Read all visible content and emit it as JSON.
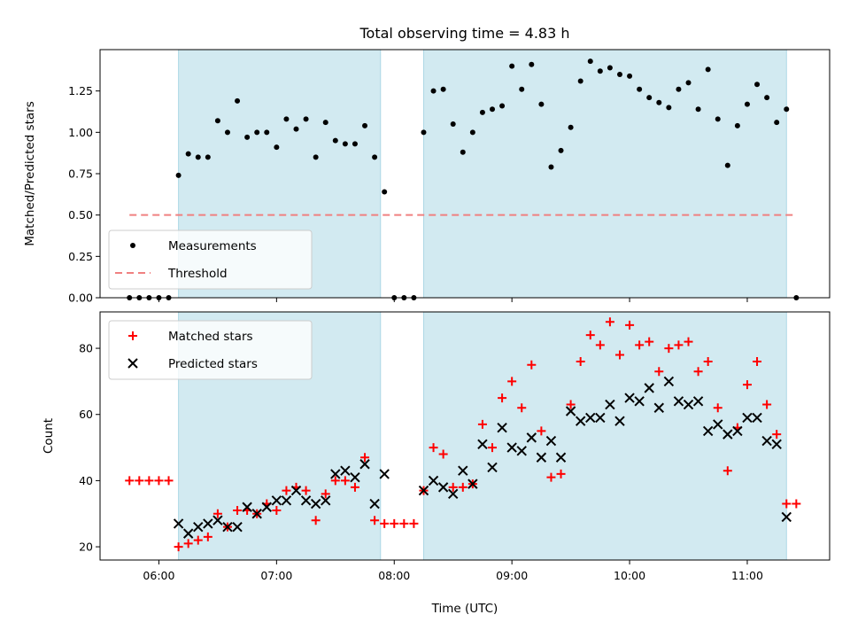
{
  "title": "Total observing time = 4.83 h",
  "colors": {
    "band": "#add8e6",
    "measurement": "#000000",
    "threshold": "#f08080",
    "matched": "#ff0000",
    "predicted": "#000000"
  },
  "chart_data": [
    {
      "type": "scatter",
      "panel": "top",
      "xlabel": "",
      "ylabel": "Matched/Predicted stars",
      "xlim": [
        "05:30",
        "11:42"
      ],
      "ylim": [
        0,
        1.5
      ],
      "yticks": [
        0.0,
        0.25,
        0.5,
        0.75,
        1.0,
        1.25
      ],
      "ytick_labels": [
        "0.00",
        "0.25",
        "0.50",
        "0.75",
        "1.00",
        "1.25"
      ],
      "shaded_intervals": [
        [
          "06:10",
          "07:53"
        ],
        [
          "08:15",
          "11:20"
        ]
      ],
      "legend_position": "lower-left",
      "series": [
        {
          "name": "Measurements",
          "marker": "dot",
          "x": [
            "05:45",
            "05:50",
            "05:55",
            "06:00",
            "06:05",
            "06:10",
            "06:15",
            "06:20",
            "06:25",
            "06:30",
            "06:35",
            "06:40",
            "06:45",
            "06:50",
            "06:55",
            "07:00",
            "07:05",
            "07:10",
            "07:15",
            "07:20",
            "07:25",
            "07:30",
            "07:35",
            "07:40",
            "07:45",
            "07:50",
            "07:55",
            "08:00",
            "08:05",
            "08:10",
            "08:15",
            "08:20",
            "08:25",
            "08:30",
            "08:35",
            "08:40",
            "08:45",
            "08:50",
            "08:55",
            "09:00",
            "09:05",
            "09:10",
            "09:15",
            "09:20",
            "09:25",
            "09:30",
            "09:35",
            "09:40",
            "09:45",
            "09:50",
            "09:55",
            "10:00",
            "10:05",
            "10:10",
            "10:15",
            "10:20",
            "10:25",
            "10:30",
            "10:35",
            "10:40",
            "10:45",
            "10:50",
            "10:55",
            "11:00",
            "11:05",
            "11:10",
            "11:15",
            "11:20",
            "11:25"
          ],
          "y": [
            0.0,
            0.0,
            0.0,
            0.0,
            0.0,
            0.74,
            0.87,
            0.85,
            0.85,
            1.07,
            1.0,
            1.19,
            0.97,
            1.0,
            1.0,
            0.91,
            1.08,
            1.02,
            1.08,
            0.85,
            1.06,
            0.95,
            0.93,
            0.93,
            1.04,
            0.85,
            0.64,
            0.0,
            0.0,
            0.0,
            1.0,
            1.25,
            1.26,
            1.05,
            0.88,
            1.0,
            1.12,
            1.14,
            1.16,
            1.4,
            1.26,
            1.41,
            1.17,
            0.79,
            0.89,
            1.03,
            1.31,
            1.43,
            1.37,
            1.39,
            1.35,
            1.34,
            1.26,
            1.21,
            1.18,
            1.15,
            1.26,
            1.3,
            1.14,
            1.38,
            1.08,
            0.8,
            1.04,
            1.17,
            1.29,
            1.21,
            1.06,
            1.14,
            0.0
          ]
        },
        {
          "name": "Threshold",
          "marker": "dashed-line",
          "x": [
            "05:45",
            "11:25"
          ],
          "y": [
            0.5,
            0.5
          ]
        }
      ]
    },
    {
      "type": "scatter",
      "panel": "bottom",
      "xlabel": "Time (UTC)",
      "ylabel": "Count",
      "xlim": [
        "05:30",
        "11:42"
      ],
      "ylim": [
        16,
        91
      ],
      "xticks": [
        "06:00",
        "07:00",
        "08:00",
        "09:00",
        "10:00",
        "11:00"
      ],
      "yticks": [
        20,
        40,
        60,
        80
      ],
      "ytick_labels": [
        "20",
        "40",
        "60",
        "80"
      ],
      "shaded_intervals": [
        [
          "06:10",
          "07:53"
        ],
        [
          "08:15",
          "11:20"
        ]
      ],
      "legend_position": "upper-left",
      "series": [
        {
          "name": "Matched stars",
          "marker": "plus",
          "x": [
            "05:45",
            "05:50",
            "05:55",
            "06:00",
            "06:05",
            "06:10",
            "06:15",
            "06:20",
            "06:25",
            "06:30",
            "06:35",
            "06:40",
            "06:45",
            "06:50",
            "06:55",
            "07:00",
            "07:05",
            "07:10",
            "07:15",
            "07:20",
            "07:25",
            "07:30",
            "07:35",
            "07:40",
            "07:45",
            "07:50",
            "07:55",
            "08:00",
            "08:05",
            "08:10",
            "08:15",
            "08:20",
            "08:25",
            "08:30",
            "08:35",
            "08:40",
            "08:45",
            "08:50",
            "08:55",
            "09:00",
            "09:05",
            "09:10",
            "09:15",
            "09:20",
            "09:25",
            "09:30",
            "09:35",
            "09:40",
            "09:45",
            "09:50",
            "09:55",
            "10:00",
            "10:05",
            "10:10",
            "10:15",
            "10:20",
            "10:25",
            "10:30",
            "10:35",
            "10:40",
            "10:45",
            "10:50",
            "10:55",
            "11:00",
            "11:05",
            "11:10",
            "11:15",
            "11:20",
            "11:25"
          ],
          "y": [
            40,
            40,
            40,
            40,
            40,
            20,
            21,
            22,
            23,
            30,
            26,
            31,
            31,
            30,
            33,
            31,
            37,
            38,
            37,
            28,
            36,
            40,
            40,
            38,
            47,
            28,
            27,
            27,
            27,
            27,
            37,
            50,
            48,
            38,
            38,
            39,
            57,
            50,
            65,
            70,
            62,
            75,
            55,
            41,
            42,
            63,
            76,
            84,
            81,
            88,
            78,
            87,
            81,
            82,
            73,
            80,
            81,
            82,
            73,
            76,
            62,
            43,
            56,
            69,
            76,
            63,
            54,
            33,
            33
          ]
        },
        {
          "name": "Predicted stars",
          "marker": "x",
          "x": [
            "06:10",
            "06:15",
            "06:20",
            "06:25",
            "06:30",
            "06:35",
            "06:40",
            "06:45",
            "06:50",
            "06:55",
            "07:00",
            "07:05",
            "07:10",
            "07:15",
            "07:20",
            "07:25",
            "07:30",
            "07:35",
            "07:40",
            "07:45",
            "07:50",
            "07:55",
            "08:15",
            "08:20",
            "08:25",
            "08:30",
            "08:35",
            "08:40",
            "08:45",
            "08:50",
            "08:55",
            "09:00",
            "09:05",
            "09:10",
            "09:15",
            "09:20",
            "09:25",
            "09:30",
            "09:35",
            "09:40",
            "09:45",
            "09:50",
            "09:55",
            "10:00",
            "10:05",
            "10:10",
            "10:15",
            "10:20",
            "10:25",
            "10:30",
            "10:35",
            "10:40",
            "10:45",
            "10:50",
            "10:55",
            "11:00",
            "11:05",
            "11:10",
            "11:15",
            "11:20"
          ],
          "y": [
            27,
            24,
            26,
            27,
            28,
            26,
            26,
            32,
            30,
            32,
            34,
            34,
            37,
            34,
            33,
            34,
            42,
            43,
            41,
            45,
            33,
            42,
            37,
            40,
            38,
            36,
            43,
            39,
            51,
            44,
            56,
            50,
            49,
            53,
            47,
            52,
            47,
            61,
            58,
            59,
            59,
            63,
            58,
            65,
            64,
            68,
            62,
            70,
            64,
            63,
            64,
            55,
            57,
            54,
            55,
            59,
            59,
            52,
            51,
            29
          ]
        }
      ]
    }
  ]
}
